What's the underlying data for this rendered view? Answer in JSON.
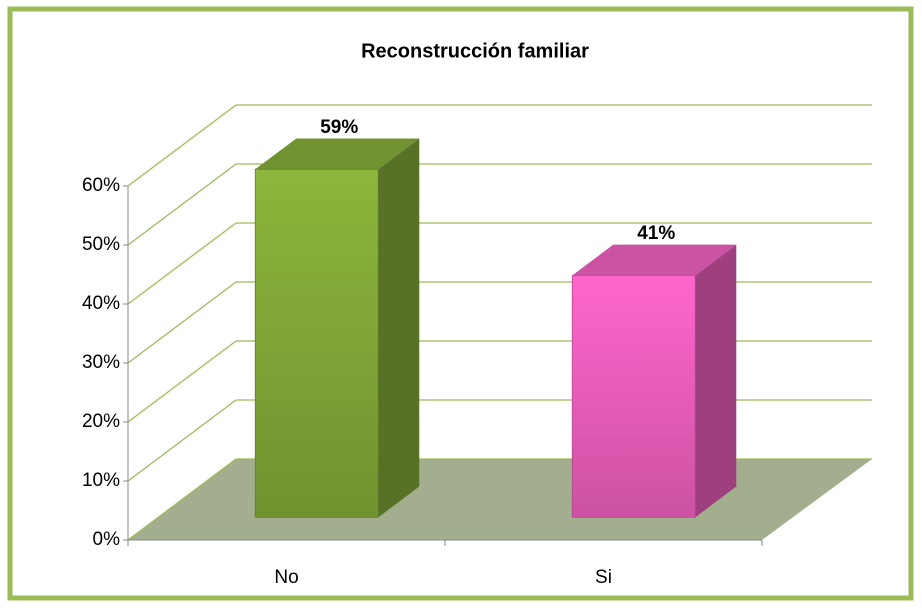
{
  "chart_data": {
    "type": "bar3d",
    "title": "Reconstrucción  familiar",
    "categories": [
      "No",
      "Si"
    ],
    "values": [
      59,
      41
    ],
    "value_labels": [
      "59%",
      "41%"
    ],
    "colors": [
      "#8cb63c",
      "#ff66cc"
    ],
    "ylim": [
      0,
      60
    ],
    "yticks": [
      {
        "value": 0,
        "label": "0%"
      },
      {
        "value": 10,
        "label": "10%"
      },
      {
        "value": 20,
        "label": "20%"
      },
      {
        "value": 30,
        "label": "30%"
      },
      {
        "value": 40,
        "label": "40%"
      },
      {
        "value": 50,
        "label": "50%"
      },
      {
        "value": 60,
        "label": "60%"
      }
    ],
    "grid": true
  }
}
